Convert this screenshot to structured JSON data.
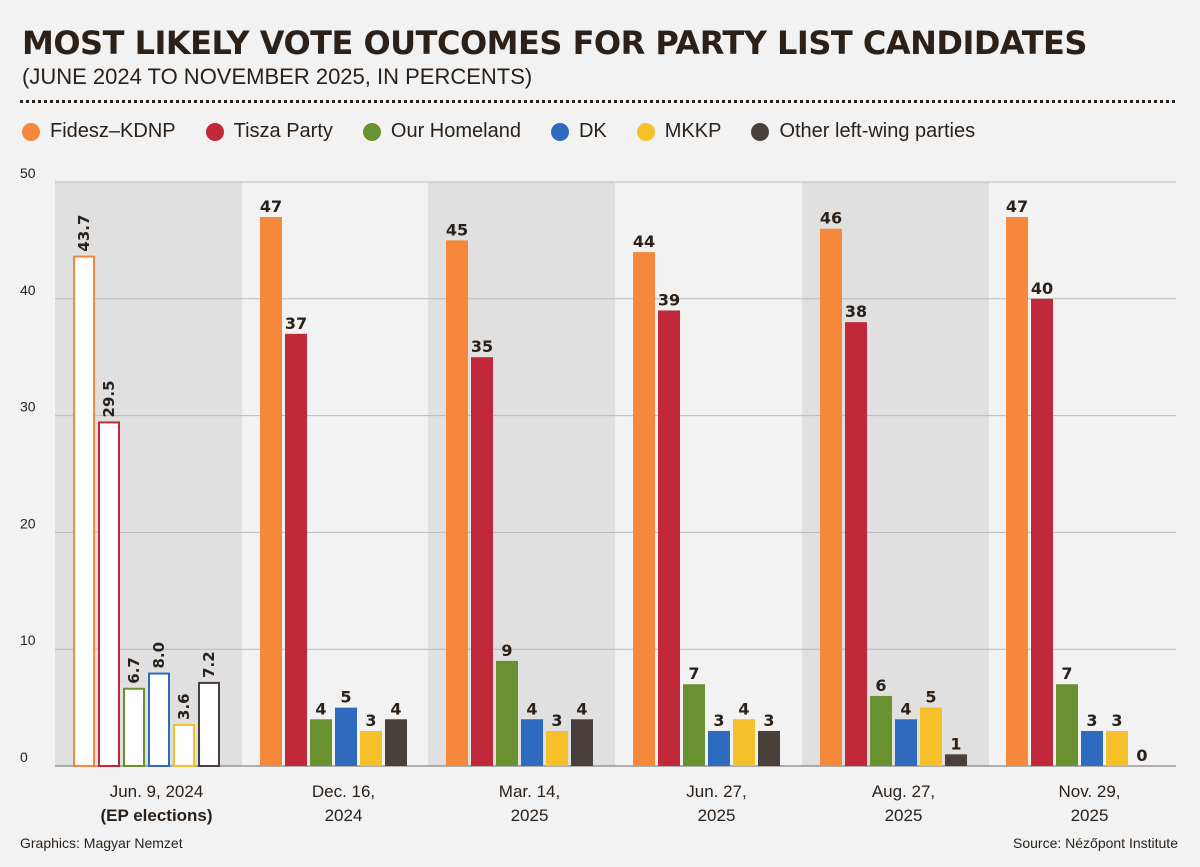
{
  "title": "MOST LIKELY VOTE OUTCOMES FOR PARTY LIST CANDIDATES",
  "subtitle": "(JUNE 2024 TO NOVEMBER 2025, IN PERCENTS)",
  "footer": {
    "credit": "Graphics: Magyar Nemzet",
    "source": "Source: Nézőpont Institute"
  },
  "colors": {
    "background": "#f2f2f2",
    "band": "#e0e0e0",
    "grid": "#b9b9b9",
    "text": "#2b2119"
  },
  "chart_data": {
    "type": "bar",
    "title": "MOST LIKELY VOTE OUTCOMES FOR PARTY LIST CANDIDATES",
    "subtitle": "(JUNE 2024 TO NOVEMBER 2025, IN PERCENTS)",
    "ylim": [
      0,
      50
    ],
    "yticks": [
      0,
      10,
      20,
      30,
      40,
      50
    ],
    "grid": true,
    "legend_position": "top",
    "groups": [
      {
        "line1": "Jun. 9, 2024",
        "line2": "(EP elections)",
        "hollow": true
      },
      {
        "line1": "Dec. 16,",
        "line2": "2024",
        "hollow": false
      },
      {
        "line1": "Mar. 14,",
        "line2": "2025",
        "hollow": false
      },
      {
        "line1": "Jun. 27,",
        "line2": "2025",
        "hollow": false
      },
      {
        "line1": "Aug. 27,",
        "line2": "2025",
        "hollow": false
      },
      {
        "line1": "Nov. 29,",
        "line2": "2025",
        "hollow": false
      }
    ],
    "series": [
      {
        "name": "Fidesz–KDNP",
        "color": "#f5883a",
        "values": [
          43.7,
          47,
          45,
          44,
          46,
          47
        ],
        "labels": [
          "43.7",
          "47",
          "45",
          "44",
          "46",
          "47"
        ]
      },
      {
        "name": "Tisza Party",
        "color": "#c1283a",
        "values": [
          29.5,
          37,
          35,
          39,
          38,
          40
        ],
        "labels": [
          "29.5",
          "37",
          "35",
          "39",
          "38",
          "40"
        ]
      },
      {
        "name": "Our Homeland",
        "color": "#6a9130",
        "values": [
          6.7,
          4,
          9,
          7,
          6,
          7
        ],
        "labels": [
          "6.7",
          "4",
          "9",
          "7",
          "6",
          "7"
        ]
      },
      {
        "name": "DK",
        "color": "#2e6bbf",
        "values": [
          8.0,
          5,
          4,
          3,
          4,
          3
        ],
        "labels": [
          "8.0",
          "5",
          "4",
          "3",
          "4",
          "3"
        ]
      },
      {
        "name": "MKKP",
        "color": "#f5c02a",
        "values": [
          3.6,
          3,
          3,
          4,
          5,
          3
        ],
        "labels": [
          "3.6",
          "3",
          "3",
          "4",
          "5",
          "3"
        ]
      },
      {
        "name": "Other left-wing parties",
        "color": "#4a403b",
        "values": [
          7.2,
          4,
          4,
          3,
          1,
          0
        ],
        "labels": [
          "7.2",
          "4",
          "4",
          "3",
          "1",
          "0"
        ]
      }
    ]
  }
}
